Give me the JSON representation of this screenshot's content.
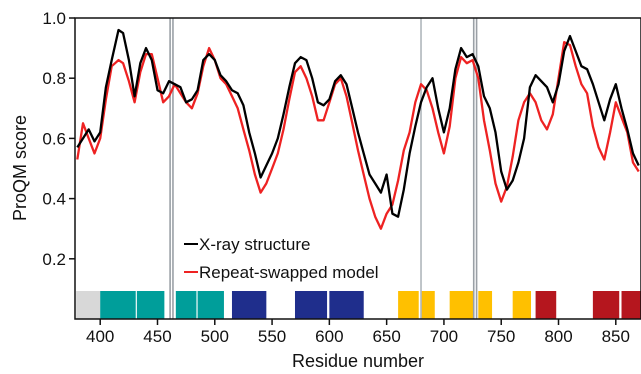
{
  "chart_data": {
    "type": "line",
    "xlabel": "Residue number",
    "ylabel": "ProQM score",
    "xlim": [
      378,
      872
    ],
    "ylim": [
      0,
      1.0
    ],
    "x_ticks": [
      "400",
      "450",
      "500",
      "550",
      "600",
      "650",
      "700",
      "750",
      "800",
      "850"
    ],
    "y_ticks": [
      "0.2",
      "0.4",
      "0.6",
      "0.8",
      "1.0"
    ],
    "grid": false,
    "legend_position": "bottom-left",
    "series": [
      {
        "name": "X-ray structure",
        "color": "#000000",
        "x": [
          380,
          385,
          390,
          395,
          400,
          405,
          410,
          413,
          416,
          420,
          425,
          430,
          435,
          440,
          445,
          450,
          455,
          460,
          465,
          470,
          475,
          480,
          485,
          490,
          495,
          500,
          505,
          510,
          515,
          520,
          525,
          530,
          535,
          540,
          545,
          550,
          555,
          560,
          565,
          570,
          575,
          580,
          585,
          590,
          595,
          600,
          605,
          610,
          615,
          620,
          625,
          630,
          635,
          640,
          645,
          650,
          655,
          660,
          665,
          670,
          675,
          680,
          685,
          690,
          695,
          700,
          705,
          710,
          715,
          720,
          725,
          730,
          735,
          740,
          745,
          750,
          755,
          760,
          765,
          770,
          775,
          780,
          785,
          790,
          795,
          800,
          805,
          810,
          815,
          820,
          825,
          830,
          835,
          840,
          845,
          850,
          855,
          860,
          865,
          870
        ],
        "values": [
          0.57,
          0.6,
          0.63,
          0.59,
          0.62,
          0.77,
          0.86,
          0.91,
          0.96,
          0.95,
          0.86,
          0.74,
          0.85,
          0.9,
          0.86,
          0.76,
          0.75,
          0.79,
          0.78,
          0.77,
          0.72,
          0.73,
          0.76,
          0.86,
          0.88,
          0.86,
          0.81,
          0.79,
          0.76,
          0.75,
          0.71,
          0.62,
          0.55,
          0.47,
          0.51,
          0.55,
          0.6,
          0.68,
          0.77,
          0.85,
          0.87,
          0.86,
          0.8,
          0.72,
          0.71,
          0.73,
          0.79,
          0.81,
          0.78,
          0.7,
          0.62,
          0.55,
          0.48,
          0.45,
          0.42,
          0.48,
          0.35,
          0.34,
          0.43,
          0.55,
          0.64,
          0.72,
          0.77,
          0.8,
          0.7,
          0.62,
          0.7,
          0.83,
          0.9,
          0.87,
          0.88,
          0.84,
          0.74,
          0.7,
          0.62,
          0.49,
          0.43,
          0.46,
          0.52,
          0.6,
          0.77,
          0.81,
          0.79,
          0.77,
          0.72,
          0.78,
          0.89,
          0.94,
          0.89,
          0.84,
          0.83,
          0.78,
          0.72,
          0.66,
          0.73,
          0.78,
          0.7,
          0.63,
          0.55,
          0.51
        ]
      },
      {
        "name": "Repeat-swapped model",
        "color": "#ee2222",
        "x": [
          380,
          385,
          390,
          395,
          400,
          405,
          410,
          413,
          416,
          420,
          425,
          430,
          435,
          440,
          445,
          450,
          455,
          460,
          465,
          470,
          475,
          480,
          485,
          490,
          495,
          500,
          505,
          510,
          515,
          520,
          525,
          530,
          535,
          540,
          545,
          550,
          555,
          560,
          565,
          570,
          575,
          580,
          585,
          590,
          595,
          600,
          605,
          610,
          615,
          620,
          625,
          630,
          635,
          640,
          645,
          650,
          655,
          660,
          665,
          670,
          675,
          680,
          685,
          690,
          695,
          700,
          705,
          710,
          715,
          720,
          725,
          730,
          735,
          740,
          745,
          750,
          755,
          760,
          765,
          770,
          775,
          780,
          785,
          790,
          795,
          800,
          805,
          810,
          815,
          820,
          825,
          830,
          835,
          840,
          845,
          850,
          855,
          860,
          865,
          870
        ],
        "values": [
          0.53,
          0.65,
          0.6,
          0.55,
          0.6,
          0.73,
          0.84,
          0.85,
          0.86,
          0.85,
          0.79,
          0.72,
          0.82,
          0.88,
          0.88,
          0.8,
          0.72,
          0.74,
          0.78,
          0.75,
          0.72,
          0.7,
          0.75,
          0.84,
          0.9,
          0.86,
          0.8,
          0.78,
          0.74,
          0.7,
          0.63,
          0.56,
          0.48,
          0.42,
          0.45,
          0.5,
          0.55,
          0.63,
          0.73,
          0.82,
          0.84,
          0.8,
          0.74,
          0.66,
          0.66,
          0.72,
          0.78,
          0.8,
          0.74,
          0.65,
          0.56,
          0.48,
          0.4,
          0.34,
          0.3,
          0.35,
          0.38,
          0.46,
          0.56,
          0.62,
          0.72,
          0.78,
          0.76,
          0.7,
          0.62,
          0.55,
          0.64,
          0.8,
          0.87,
          0.85,
          0.86,
          0.8,
          0.66,
          0.56,
          0.45,
          0.39,
          0.44,
          0.54,
          0.66,
          0.72,
          0.75,
          0.72,
          0.66,
          0.63,
          0.68,
          0.8,
          0.92,
          0.91,
          0.84,
          0.78,
          0.75,
          0.64,
          0.57,
          0.53,
          0.62,
          0.72,
          0.67,
          0.62,
          0.52,
          0.49
        ]
      }
    ],
    "vertical_lines": [
      {
        "x": 461,
        "color": "#9aa0a6"
      },
      {
        "x": 463.5,
        "color": "#9aa0a6"
      },
      {
        "x": 680,
        "color": "#b0b6bb"
      },
      {
        "x": 726,
        "color": "#9aa0a6"
      },
      {
        "x": 728.5,
        "color": "#9aa0a6"
      }
    ],
    "segments": [
      {
        "start": 379,
        "end": 400,
        "color": "#d8d8d8"
      },
      {
        "start": 400,
        "end": 431,
        "color": "#009e9a"
      },
      {
        "start": 432,
        "end": 456,
        "color": "#009e9a"
      },
      {
        "start": 466,
        "end": 484,
        "color": "#009e9a"
      },
      {
        "start": 485,
        "end": 508,
        "color": "#009e9a"
      },
      {
        "start": 515,
        "end": 545,
        "color": "#1f2e8c"
      },
      {
        "start": 570,
        "end": 598,
        "color": "#1f2e8c"
      },
      {
        "start": 600,
        "end": 630,
        "color": "#1f2e8c"
      },
      {
        "start": 660,
        "end": 678,
        "color": "#ffc000"
      },
      {
        "start": 680,
        "end": 692,
        "color": "#ffc000"
      },
      {
        "start": 705,
        "end": 726,
        "color": "#ffc000"
      },
      {
        "start": 730,
        "end": 742,
        "color": "#ffc000"
      },
      {
        "start": 760,
        "end": 776,
        "color": "#ffc000"
      },
      {
        "start": 780,
        "end": 798,
        "color": "#b5161e"
      },
      {
        "start": 830,
        "end": 853,
        "color": "#b5161e"
      },
      {
        "start": 855,
        "end": 872,
        "color": "#b5161e"
      }
    ]
  }
}
